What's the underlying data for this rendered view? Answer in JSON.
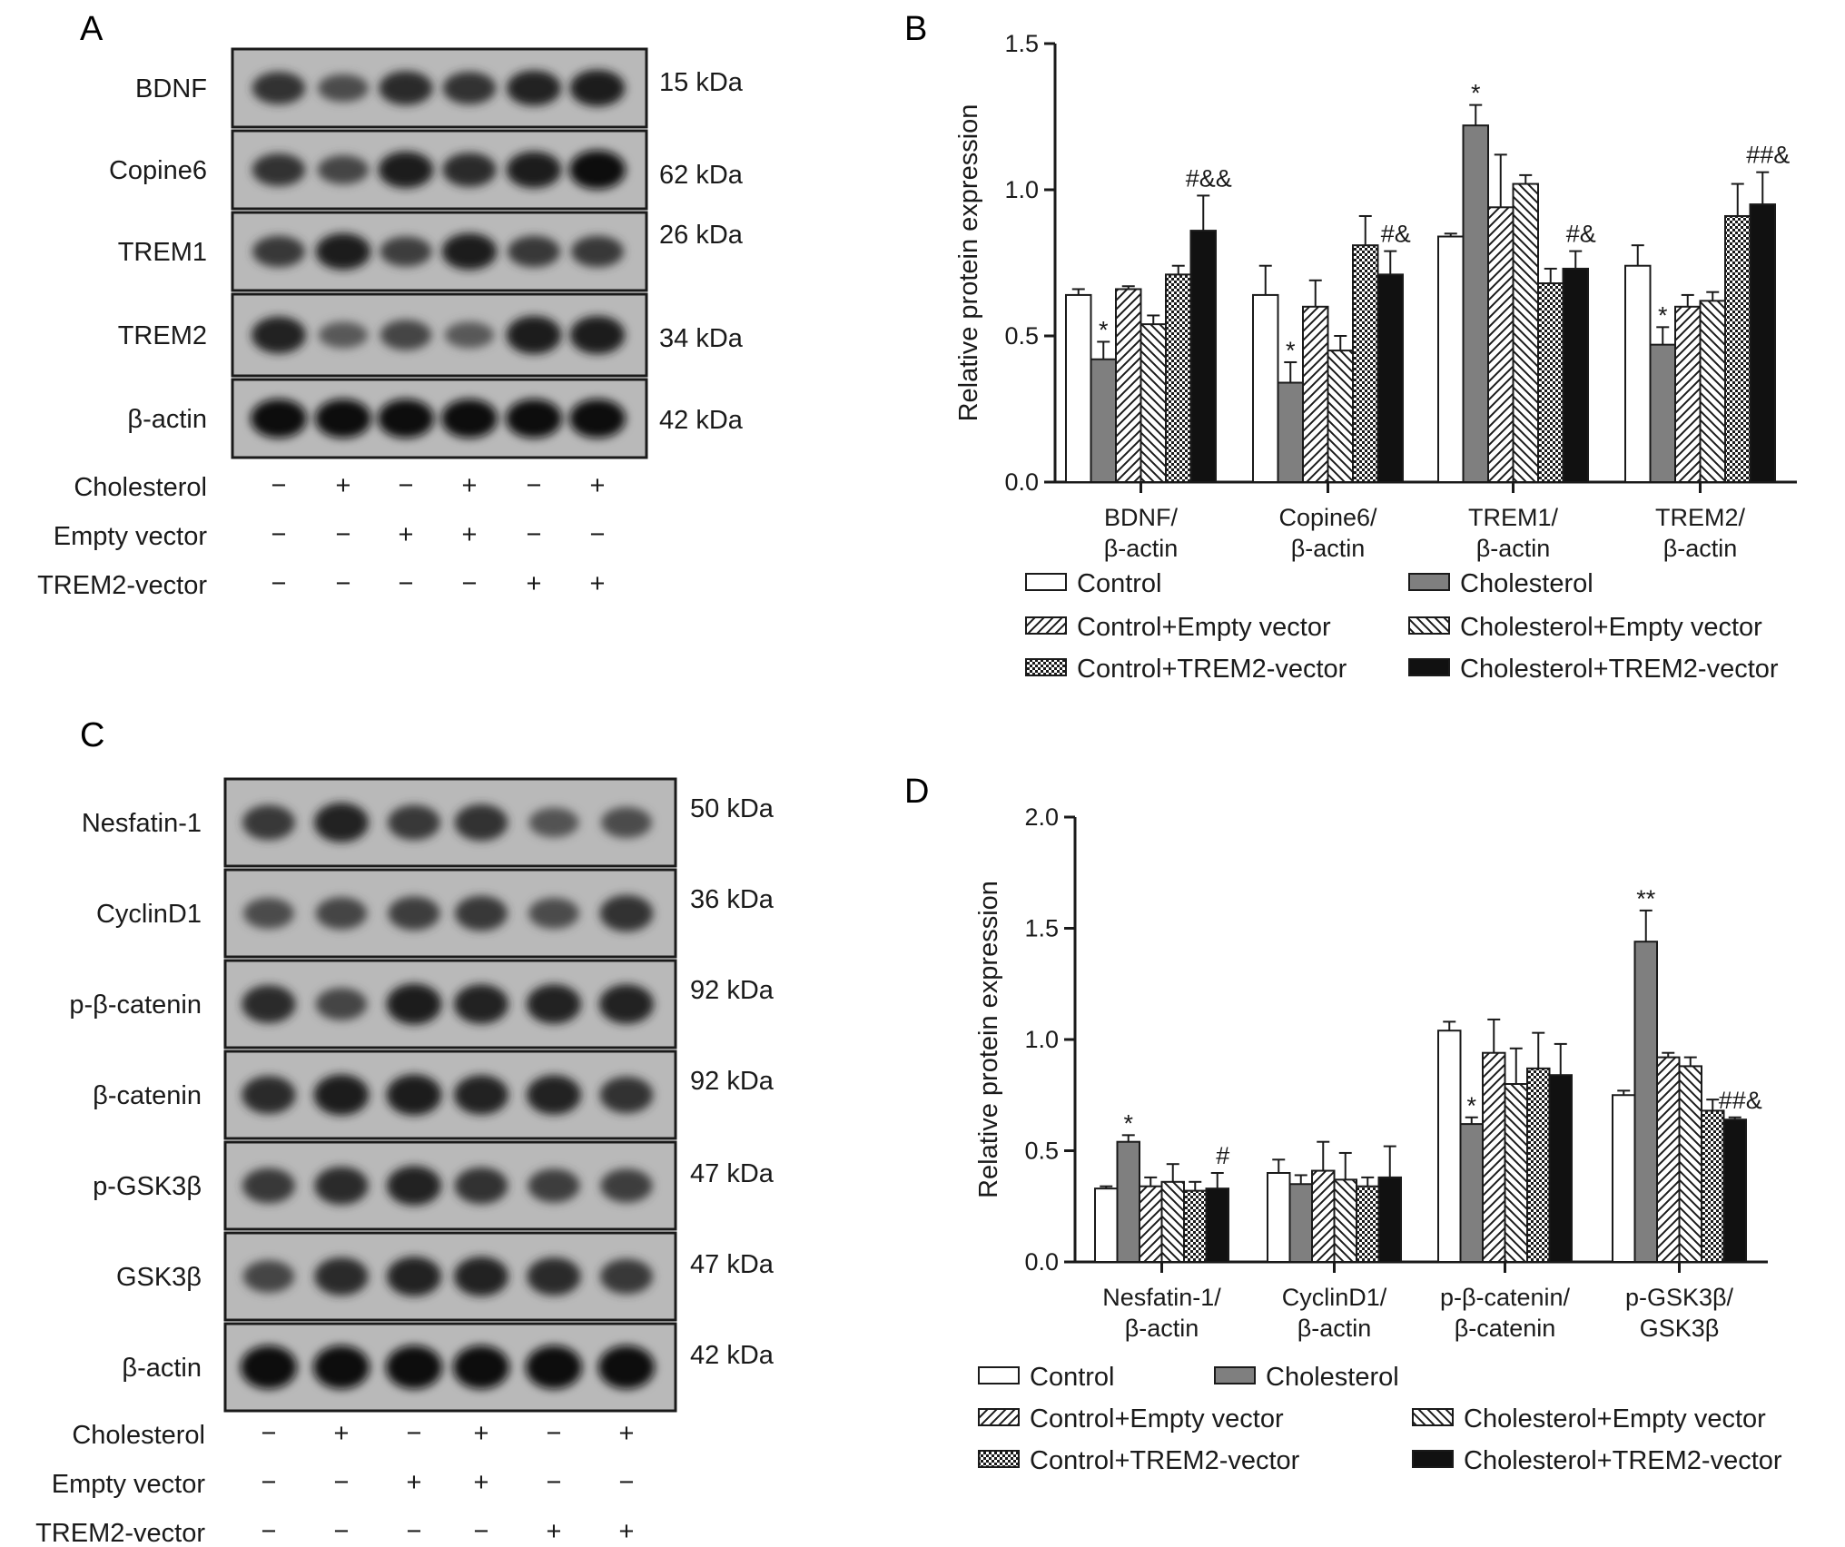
{
  "panels": {
    "A": {
      "letter": "A",
      "rows": [
        {
          "label": "BDNF",
          "kda": "15 kDa",
          "intensity": [
            0.75,
            0.55,
            0.8,
            0.75,
            0.85,
            0.9
          ]
        },
        {
          "label": "Copine6",
          "kda": "62 kDa",
          "intensity": [
            0.75,
            0.6,
            0.9,
            0.8,
            0.9,
            1.0
          ]
        },
        {
          "label": "TREM1",
          "kda": "26 kDa",
          "intensity": [
            0.7,
            0.9,
            0.65,
            0.9,
            0.7,
            0.7
          ]
        },
        {
          "label": "TREM2",
          "kda": "34 kDa",
          "intensity": [
            0.85,
            0.45,
            0.6,
            0.45,
            0.9,
            0.9
          ]
        },
        {
          "label": "β-actin",
          "kda": "42 kDa",
          "intensity": [
            1.0,
            1.0,
            1.0,
            1.0,
            1.0,
            1.0
          ]
        }
      ],
      "treatments": [
        {
          "label": "Cholesterol",
          "signs": [
            "−",
            "+",
            "−",
            "+",
            "−",
            "+"
          ]
        },
        {
          "label": "Empty vector",
          "signs": [
            "−",
            "−",
            "+",
            "+",
            "−",
            "−"
          ]
        },
        {
          "label": "TREM2-vector",
          "signs": [
            "−",
            "−",
            "−",
            "−",
            "+",
            "+"
          ]
        }
      ]
    },
    "C": {
      "letter": "C",
      "rows": [
        {
          "label": "Nesfatin-1",
          "kda": "50 kDa",
          "intensity": [
            0.7,
            0.85,
            0.7,
            0.75,
            0.5,
            0.55
          ]
        },
        {
          "label": "CyclinD1",
          "kda": "36 kDa",
          "intensity": [
            0.55,
            0.6,
            0.65,
            0.7,
            0.55,
            0.75
          ]
        },
        {
          "label": "p-β-catenin",
          "kda": "92 kDa",
          "intensity": [
            0.8,
            0.6,
            0.9,
            0.85,
            0.85,
            0.85
          ]
        },
        {
          "label": "β-catenin",
          "kda": "92 kDa",
          "intensity": [
            0.8,
            0.9,
            0.9,
            0.85,
            0.85,
            0.75
          ]
        },
        {
          "label": "p-GSK3β",
          "kda": "47 kDa",
          "intensity": [
            0.7,
            0.8,
            0.85,
            0.75,
            0.65,
            0.65
          ]
        },
        {
          "label": "GSK3β",
          "kda": "47 kDa",
          "intensity": [
            0.6,
            0.8,
            0.85,
            0.85,
            0.8,
            0.7
          ]
        },
        {
          "label": "β-actin",
          "kda": "42 kDa",
          "intensity": [
            1.0,
            1.0,
            1.0,
            1.0,
            1.0,
            1.0
          ]
        }
      ],
      "treatments": [
        {
          "label": "Cholesterol",
          "signs": [
            "−",
            "+",
            "−",
            "+",
            "−",
            "+"
          ]
        },
        {
          "label": "Empty vector",
          "signs": [
            "−",
            "−",
            "+",
            "+",
            "−",
            "−"
          ]
        },
        {
          "label": "TREM2-vector",
          "signs": [
            "−",
            "−",
            "−",
            "−",
            "+",
            "+"
          ]
        }
      ]
    }
  },
  "chart_data": [
    {
      "panel": "B",
      "type": "bar",
      "ylabel": "Relative protein expression",
      "ylim": [
        0,
        1.5
      ],
      "yticks": [
        "0.0",
        "0.5",
        "1.0",
        "1.5"
      ],
      "categories": [
        "BDNF/\nβ-actin",
        "Copine6/\nβ-actin",
        "TREM1/\nβ-actin",
        "TREM2/\nβ-actin"
      ],
      "series": [
        {
          "name": "Control",
          "fill": "white",
          "values": [
            0.64,
            0.64,
            0.84,
            0.74
          ],
          "errors": [
            0.02,
            0.1,
            0.01,
            0.07
          ]
        },
        {
          "name": "Cholesterol",
          "fill": "gray",
          "values": [
            0.42,
            0.34,
            1.22,
            0.47
          ],
          "errors": [
            0.06,
            0.07,
            0.07,
            0.06
          ]
        },
        {
          "name": "Control+Empty vector",
          "fill": "hatch-right",
          "values": [
            0.66,
            0.6,
            0.94,
            0.6
          ],
          "errors": [
            0.01,
            0.09,
            0.18,
            0.04
          ]
        },
        {
          "name": "Cholesterol+Empty vector",
          "fill": "hatch-left",
          "values": [
            0.54,
            0.45,
            1.02,
            0.62
          ],
          "errors": [
            0.03,
            0.05,
            0.03,
            0.03
          ]
        },
        {
          "name": "Control+TREM2-vector",
          "fill": "checker",
          "values": [
            0.71,
            0.81,
            0.68,
            0.91
          ],
          "errors": [
            0.03,
            0.1,
            0.05,
            0.11
          ]
        },
        {
          "name": "Cholesterol+TREM2-vector",
          "fill": "black",
          "values": [
            0.86,
            0.71,
            0.73,
            0.95
          ],
          "errors": [
            0.12,
            0.08,
            0.06,
            0.11
          ]
        }
      ],
      "annotations": [
        {
          "text": "*",
          "category": 0,
          "series": 1
        },
        {
          "text": "#&&",
          "category": 0,
          "series": 5
        },
        {
          "text": "*",
          "category": 1,
          "series": 1
        },
        {
          "text": "#&",
          "category": 1,
          "series": 5
        },
        {
          "text": "*",
          "category": 2,
          "series": 1
        },
        {
          "text": "#&",
          "category": 2,
          "series": 5
        },
        {
          "text": "*",
          "category": 3,
          "series": 1
        },
        {
          "text": "##&",
          "category": 3,
          "series": 5
        }
      ]
    },
    {
      "panel": "D",
      "type": "bar",
      "ylabel": "Relative protein expression",
      "ylim": [
        0,
        2.0
      ],
      "yticks": [
        "0.0",
        "0.5",
        "1.0",
        "1.5",
        "2.0"
      ],
      "categories": [
        "Nesfatin-1/\nβ-actin",
        "CyclinD1/\nβ-actin",
        "p-β-catenin/\nβ-catenin",
        "p-GSK3β/\nGSK3β"
      ],
      "series": [
        {
          "name": "Control",
          "fill": "white",
          "values": [
            0.33,
            0.4,
            1.04,
            0.75
          ],
          "errors": [
            0.01,
            0.06,
            0.04,
            0.02
          ]
        },
        {
          "name": "Cholesterol",
          "fill": "gray",
          "values": [
            0.54,
            0.35,
            0.62,
            1.44
          ],
          "errors": [
            0.03,
            0.04,
            0.03,
            0.14
          ]
        },
        {
          "name": "Control+Empty vector",
          "fill": "hatch-right",
          "values": [
            0.34,
            0.41,
            0.94,
            0.92
          ],
          "errors": [
            0.04,
            0.13,
            0.15,
            0.02
          ]
        },
        {
          "name": "Cholesterol+Empty vector",
          "fill": "hatch-left",
          "values": [
            0.36,
            0.37,
            0.8,
            0.88
          ],
          "errors": [
            0.08,
            0.12,
            0.16,
            0.04
          ]
        },
        {
          "name": "Control+TREM2-vector",
          "fill": "checker",
          "values": [
            0.32,
            0.34,
            0.87,
            0.68
          ],
          "errors": [
            0.04,
            0.04,
            0.16,
            0.05
          ]
        },
        {
          "name": "Cholesterol+TREM2-vector",
          "fill": "black",
          "values": [
            0.33,
            0.38,
            0.84,
            0.64
          ],
          "errors": [
            0.07,
            0.14,
            0.14,
            0.01
          ]
        }
      ],
      "annotations": [
        {
          "text": "*",
          "category": 0,
          "series": 1
        },
        {
          "text": "#",
          "category": 0,
          "series": 5
        },
        {
          "text": "*",
          "category": 2,
          "series": 1
        },
        {
          "text": "**",
          "category": 3,
          "series": 1
        },
        {
          "text": "##&",
          "category": 3,
          "series": 5
        }
      ]
    }
  ]
}
